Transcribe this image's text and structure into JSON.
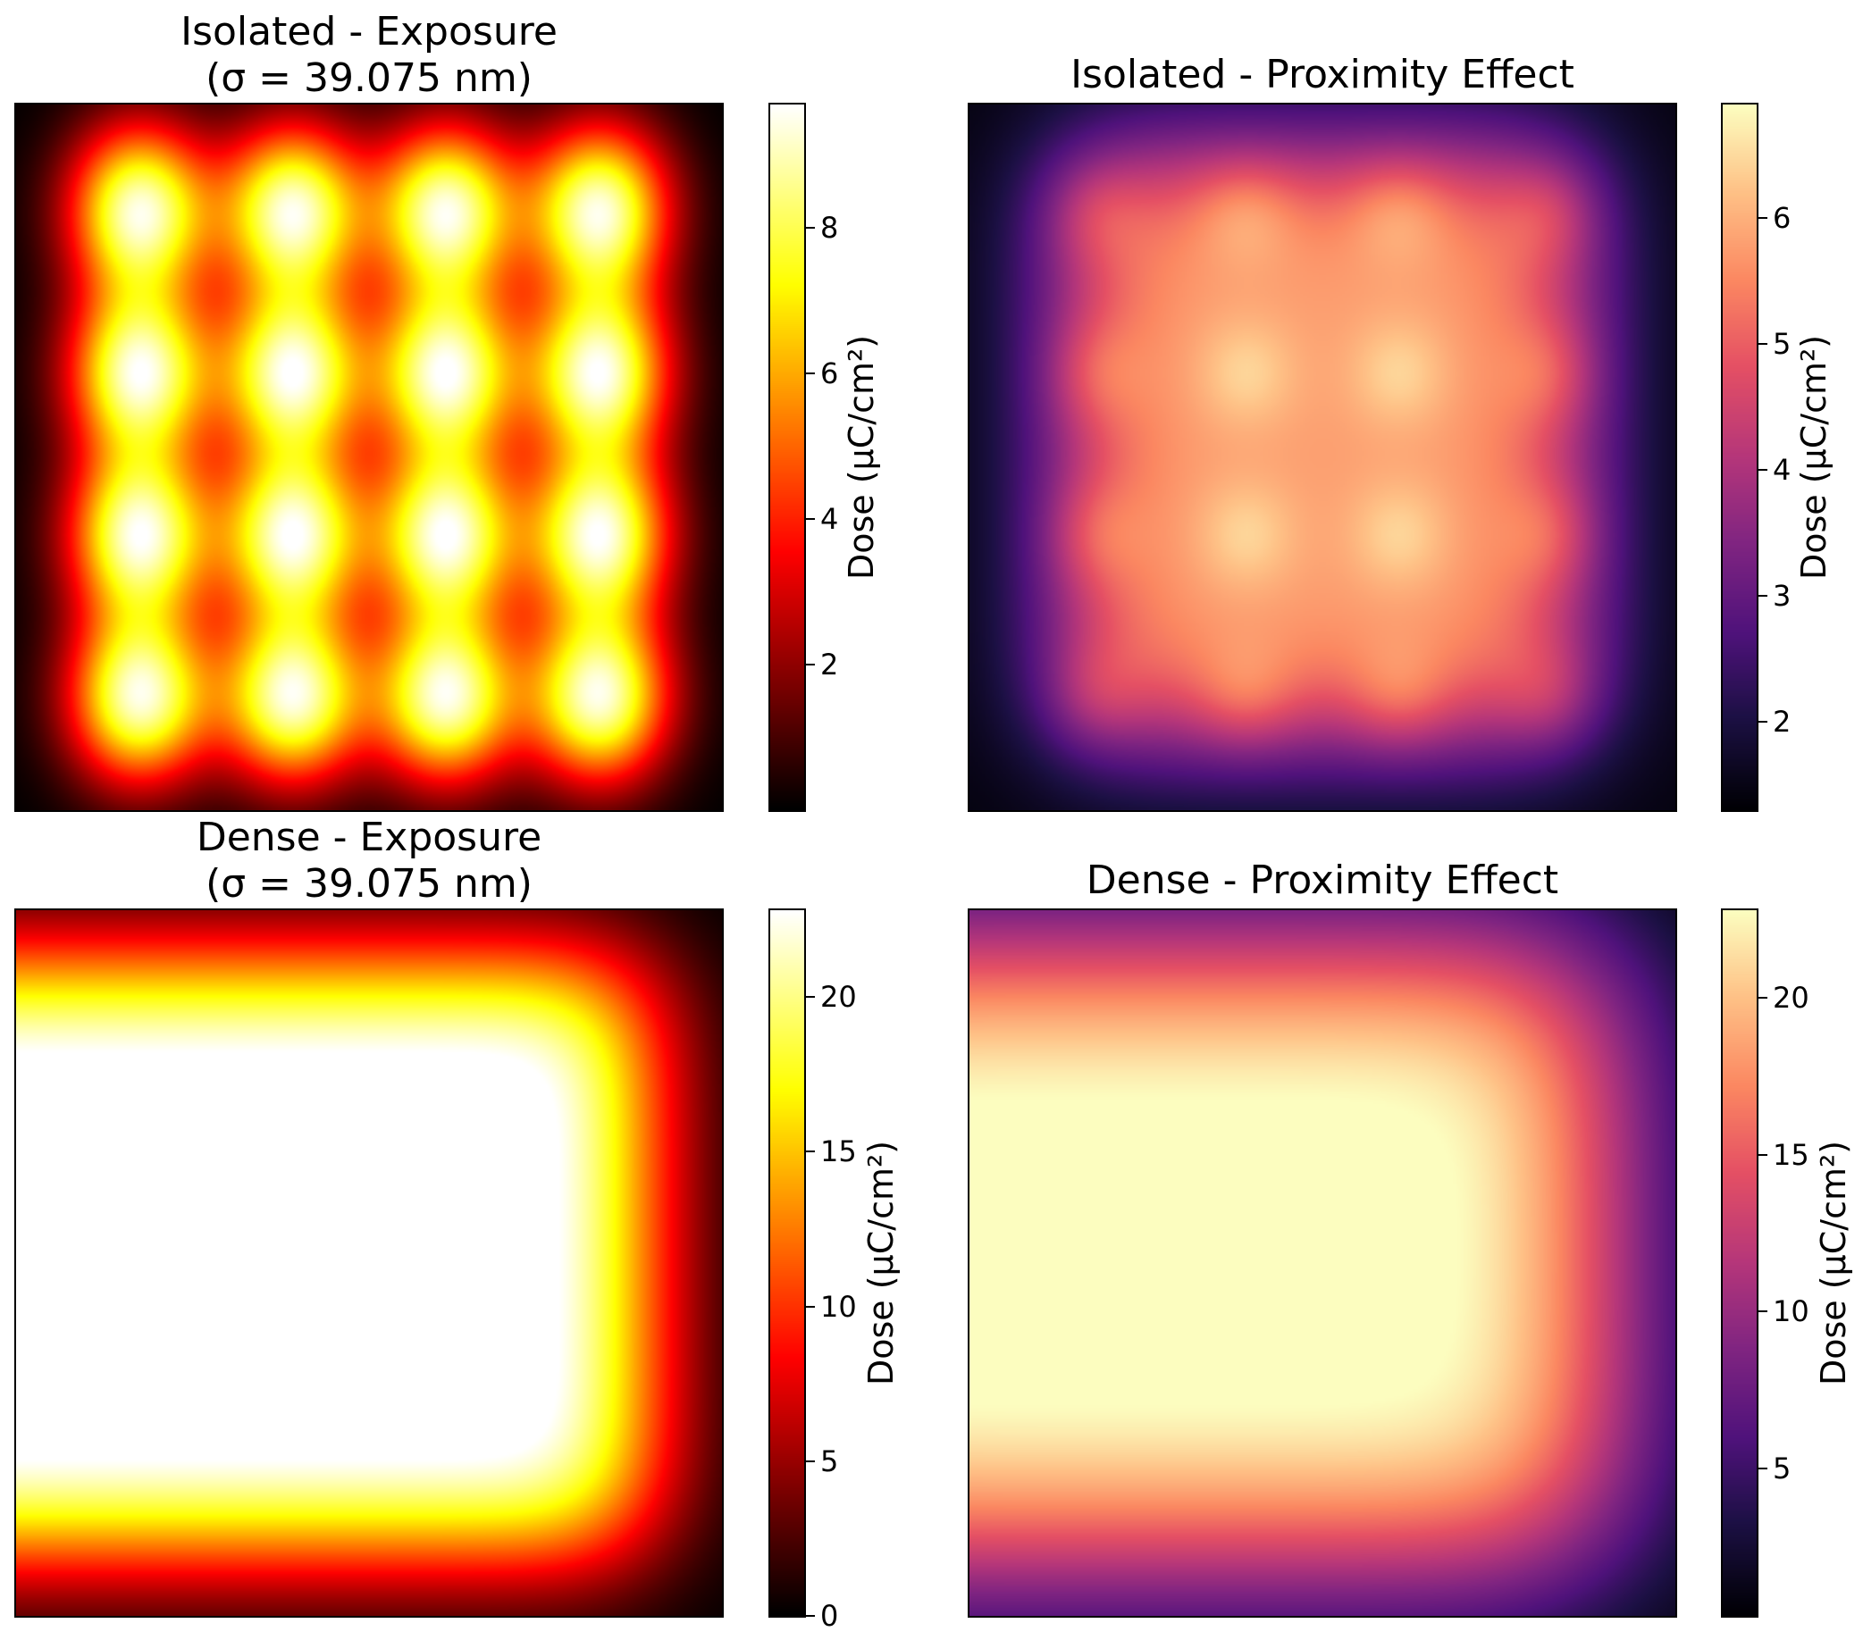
{
  "chart_data": [
    {
      "type": "heatmap",
      "title": "Isolated - Exposure",
      "subtitle": "(σ = 39.075 nm)",
      "colormap": "hot",
      "pattern": "4x4 array of isolated exposure spots",
      "grid_rows": 4,
      "grid_cols": 4,
      "colorbar": {
        "label": "Dose (μC/cm²)",
        "ticks": [
          2,
          4,
          6,
          8
        ],
        "range": [
          0,
          9.7
        ]
      }
    },
    {
      "type": "heatmap",
      "title": "Isolated - Proximity Effect",
      "colormap": "magma",
      "pattern": "4x4 array of spots blurred by proximity effect",
      "grid_rows": 4,
      "grid_cols": 4,
      "colorbar": {
        "label": "Dose (μC/cm²)",
        "ticks": [
          2,
          3,
          4,
          5,
          6
        ],
        "range": [
          1.3,
          6.9
        ]
      }
    },
    {
      "type": "heatmap",
      "title": "Dense - Exposure",
      "subtitle": "(σ = 39.075 nm)",
      "colormap": "hot",
      "pattern": "dense filled rectangle",
      "colorbar": {
        "label": "Dose (μC/cm²)",
        "ticks": [
          0,
          5,
          10,
          15,
          20
        ],
        "range": [
          0,
          22.8
        ]
      }
    },
    {
      "type": "heatmap",
      "title": "Dense - Proximity Effect",
      "colormap": "magma",
      "pattern": "dense filled rectangle blurred by proximity effect",
      "colorbar": {
        "label": "Dose (μC/cm²)",
        "ticks": [
          5,
          10,
          15,
          20
        ],
        "range": [
          0.3,
          22.8
        ]
      }
    }
  ]
}
